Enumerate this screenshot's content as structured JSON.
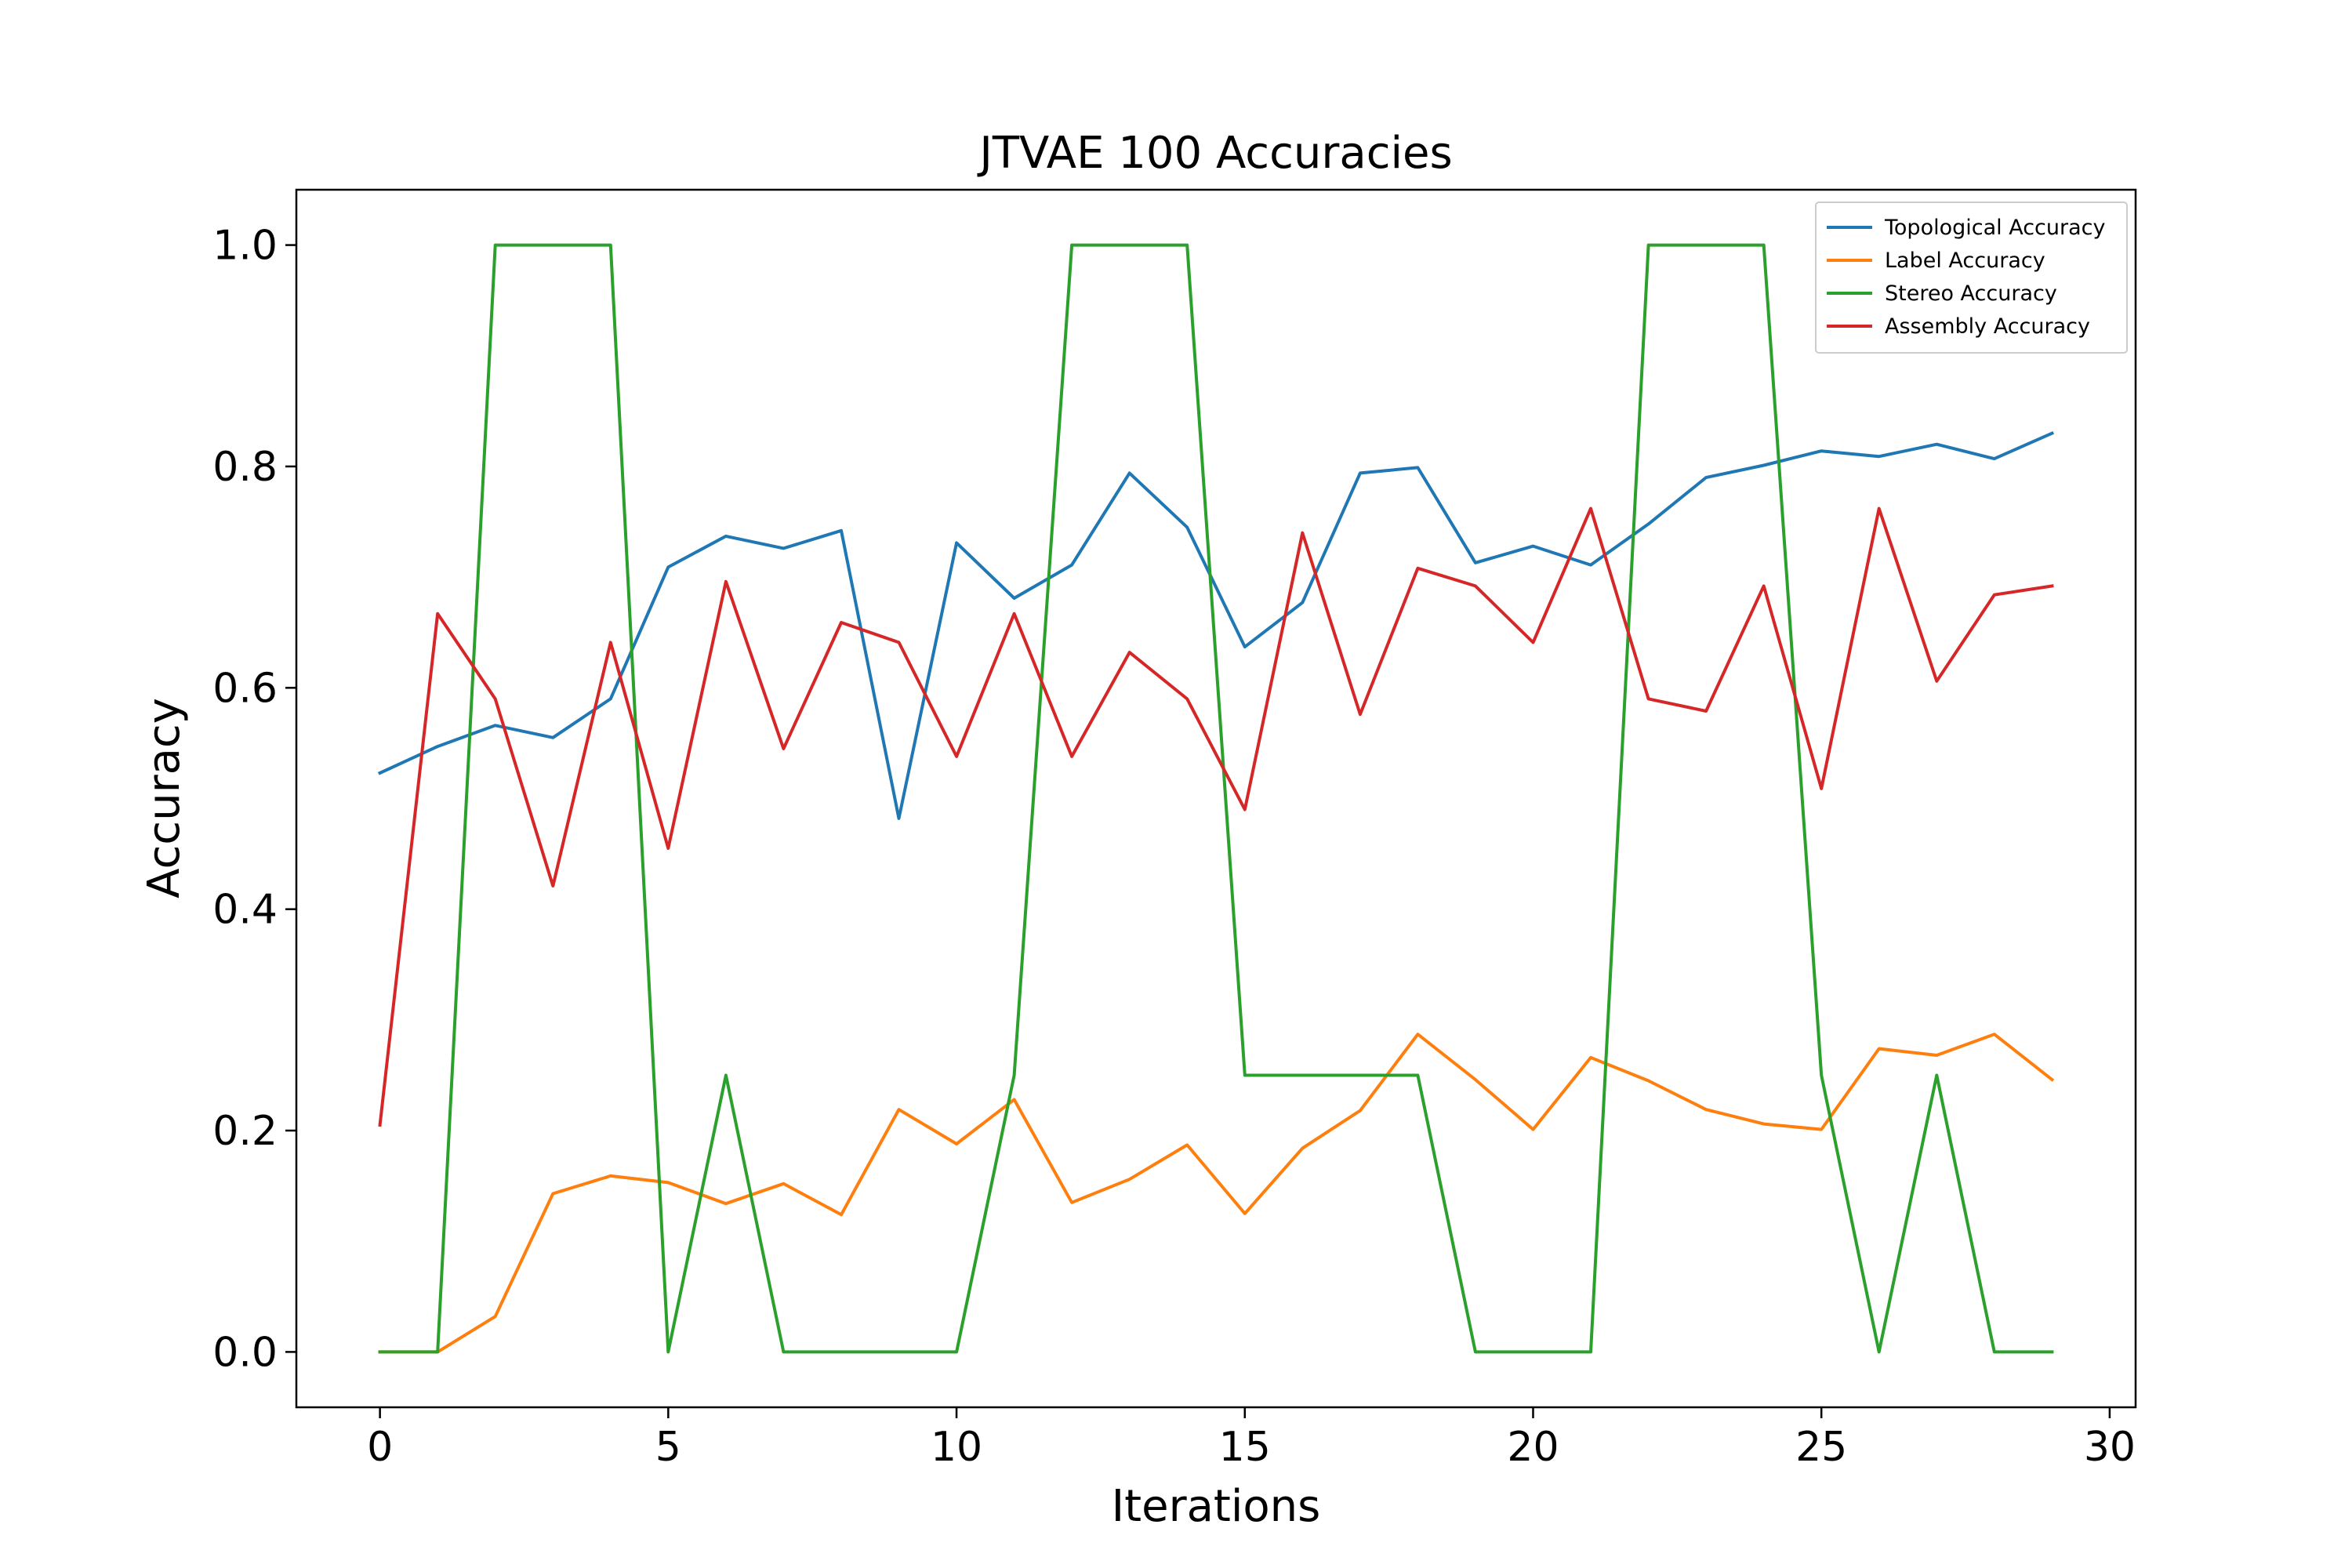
{
  "chart_data": {
    "type": "line",
    "title": "JTVAE 100 Accuracies",
    "xlabel": "Iterations",
    "ylabel": "Accuracy",
    "xlim": [
      -1.45,
      30.45
    ],
    "ylim": [
      -0.05,
      1.05
    ],
    "xticks": [
      0,
      5,
      10,
      15,
      20,
      25,
      30
    ],
    "yticks": [
      0.0,
      0.2,
      0.4,
      0.6,
      0.8,
      1.0
    ],
    "xtick_labels": [
      "0",
      "5",
      "10",
      "15",
      "20",
      "25",
      "30"
    ],
    "ytick_labels": [
      "0.0",
      "0.2",
      "0.4",
      "0.6",
      "0.8",
      "1.0"
    ],
    "legend_position": "top-right",
    "grid": false,
    "x": [
      0,
      1,
      2,
      3,
      4,
      5,
      6,
      7,
      8,
      9,
      10,
      11,
      12,
      13,
      14,
      15,
      16,
      17,
      18,
      19,
      20,
      21,
      22,
      23,
      24,
      25,
      26,
      27,
      28,
      29
    ],
    "series": [
      {
        "name": "Topological Accuracy",
        "color": "#1f77b4",
        "values": [
          0.523,
          0.547,
          0.566,
          0.555,
          0.59,
          0.709,
          0.737,
          0.726,
          0.742,
          0.482,
          0.731,
          0.681,
          0.711,
          0.794,
          0.745,
          0.637,
          0.677,
          0.794,
          0.799,
          0.713,
          0.728,
          0.711,
          0.748,
          0.79,
          0.801,
          0.814,
          0.809,
          0.82,
          0.807,
          0.83
        ]
      },
      {
        "name": "Label Accuracy",
        "color": "#ff7f0e",
        "values": [
          0.0,
          0.0,
          0.032,
          0.143,
          0.159,
          0.153,
          0.134,
          0.152,
          0.124,
          0.219,
          0.188,
          0.228,
          0.135,
          0.156,
          0.187,
          0.125,
          0.184,
          0.218,
          0.287,
          0.246,
          0.201,
          0.266,
          0.245,
          0.219,
          0.206,
          0.201,
          0.274,
          0.268,
          0.287,
          0.246
        ]
      },
      {
        "name": "Stereo Accuracy",
        "color": "#2ca02c",
        "values": [
          0.0,
          0.0,
          1.0,
          1.0,
          1.0,
          0.0,
          0.25,
          0.0,
          0.0,
          0.0,
          0.0,
          0.25,
          1.0,
          1.0,
          1.0,
          0.25,
          0.25,
          0.25,
          0.25,
          0.0,
          0.0,
          0.0,
          1.0,
          1.0,
          1.0,
          0.25,
          0.0,
          0.25,
          0.0,
          0.0
        ]
      },
      {
        "name": "Assembly Accuracy",
        "color": "#d62728",
        "values": [
          0.205,
          0.667,
          0.59,
          0.421,
          0.641,
          0.455,
          0.696,
          0.545,
          0.659,
          0.641,
          0.538,
          0.667,
          0.538,
          0.632,
          0.59,
          0.49,
          0.74,
          0.576,
          0.708,
          0.692,
          0.641,
          0.762,
          0.59,
          0.579,
          0.692,
          0.509,
          0.762,
          0.606,
          0.684,
          0.692
        ]
      }
    ]
  }
}
